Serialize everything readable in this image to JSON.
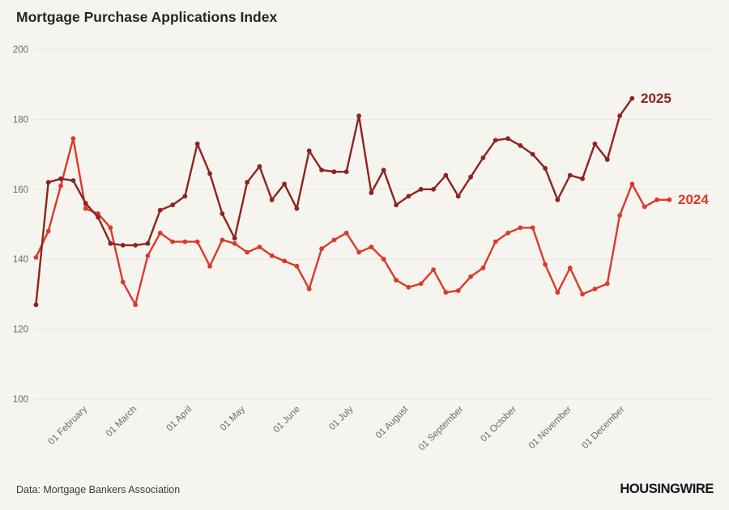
{
  "header": {
    "title": "Mortgage Purchase Applications Index"
  },
  "footer": {
    "source": "Data: Mortgage Bankers Association",
    "brand": "HOUSINGWIRE"
  },
  "colors": {
    "background": "#f6f4ee",
    "grid": "#e7e4de",
    "axis_text": "#6a6a6a",
    "title_text": "#262626",
    "series_2025": "#8c2420",
    "series_2024": "#d93a2b",
    "footer_text": "#3b3b3b",
    "brand_text": "#14161b"
  },
  "chart_data": {
    "type": "line",
    "title": "Mortgage Purchase Applications Index",
    "xlabel": "",
    "ylabel": "",
    "ylim": [
      100,
      200
    ],
    "grid": "horizontal",
    "legend_position": "end-of-line-labels",
    "y_axis": {
      "ticks": [
        200,
        180,
        160,
        140,
        120,
        100
      ]
    },
    "x_axis": {
      "tick_labels": [
        "01 February",
        "01 March",
        "01 April",
        "01 May",
        "01 June",
        "01 July",
        "01 August",
        "01 September",
        "01 October",
        "01 November",
        "01 December"
      ],
      "tick_day_of_year": [
        31,
        59,
        90,
        120,
        151,
        181,
        212,
        243,
        273,
        304,
        334
      ]
    },
    "sampling": "weekly",
    "start_day_of_year": 2,
    "step_days": 7,
    "series": [
      {
        "name": "2024",
        "color": "#d93a2b",
        "values": [
          140.5,
          148,
          161,
          174.5,
          154.5,
          153,
          149,
          133.5,
          127,
          141,
          147.5,
          145,
          145,
          145,
          138,
          145.5,
          144.5,
          142,
          143.5,
          141,
          139.5,
          138,
          131.5,
          143,
          145.5,
          147.5,
          142,
          143.5,
          140,
          134,
          132,
          133,
          137,
          130.5,
          131,
          135,
          137.5,
          145,
          147.5,
          149,
          149,
          138.5,
          130.5,
          137.5,
          130,
          131.5,
          133,
          152.5,
          161.5,
          155,
          157,
          157
        ]
      },
      {
        "name": "2025",
        "color": "#8c2420",
        "values": [
          127,
          162,
          163,
          162.5,
          156,
          152,
          144.5,
          144,
          144,
          144.5,
          154,
          155.5,
          158,
          173,
          164.5,
          153,
          146,
          162,
          166.5,
          157,
          161.5,
          154.5,
          171,
          165.5,
          165,
          165,
          181,
          159,
          165.5,
          155.5,
          158,
          160,
          160,
          164,
          158,
          163.5,
          169,
          174,
          174.5,
          172.5,
          170,
          166,
          157,
          164,
          163,
          173,
          168.5,
          181,
          186
        ]
      }
    ]
  }
}
